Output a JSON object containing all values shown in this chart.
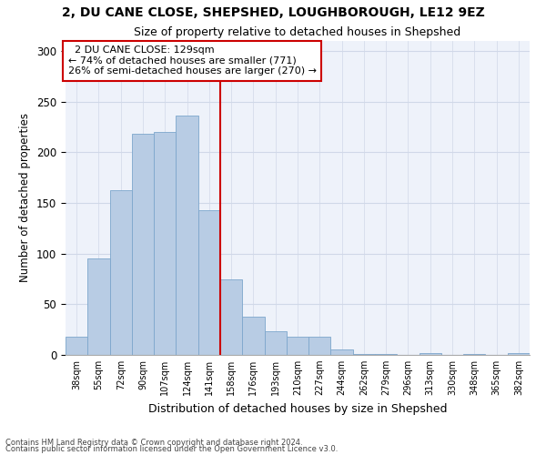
{
  "title1": "2, DU CANE CLOSE, SHEPSHED, LOUGHBOROUGH, LE12 9EZ",
  "title2": "Size of property relative to detached houses in Shepshed",
  "xlabel": "Distribution of detached houses by size in Shepshed",
  "ylabel": "Number of detached properties",
  "annotation_line1": "  2 DU CANE CLOSE: 129sqm  ",
  "annotation_line2": "← 74% of detached houses are smaller (771)",
  "annotation_line3": "26% of semi-detached houses are larger (270) →",
  "bar_labels": [
    "38sqm",
    "55sqm",
    "72sqm",
    "90sqm",
    "107sqm",
    "124sqm",
    "141sqm",
    "158sqm",
    "176sqm",
    "193sqm",
    "210sqm",
    "227sqm",
    "244sqm",
    "262sqm",
    "279sqm",
    "296sqm",
    "313sqm",
    "330sqm",
    "348sqm",
    "365sqm",
    "382sqm"
  ],
  "bar_values": [
    18,
    95,
    163,
    218,
    220,
    236,
    143,
    75,
    38,
    23,
    18,
    18,
    5,
    1,
    1,
    0,
    2,
    0,
    1,
    0,
    2
  ],
  "bar_color": "#b8cce4",
  "bar_edgecolor": "#7ca6cc",
  "vline_x": 6.5,
  "vline_color": "#cc0000",
  "ylim": [
    0,
    310
  ],
  "yticks": [
    0,
    50,
    100,
    150,
    200,
    250,
    300
  ],
  "bg_color": "#eef2fa",
  "grid_color": "#d0d8e8",
  "footer1": "Contains HM Land Registry data © Crown copyright and database right 2024.",
  "footer2": "Contains public sector information licensed under the Open Government Licence v3.0.",
  "annotation_box_color": "#cc0000",
  "title_fontsize": 10,
  "subtitle_fontsize": 9
}
